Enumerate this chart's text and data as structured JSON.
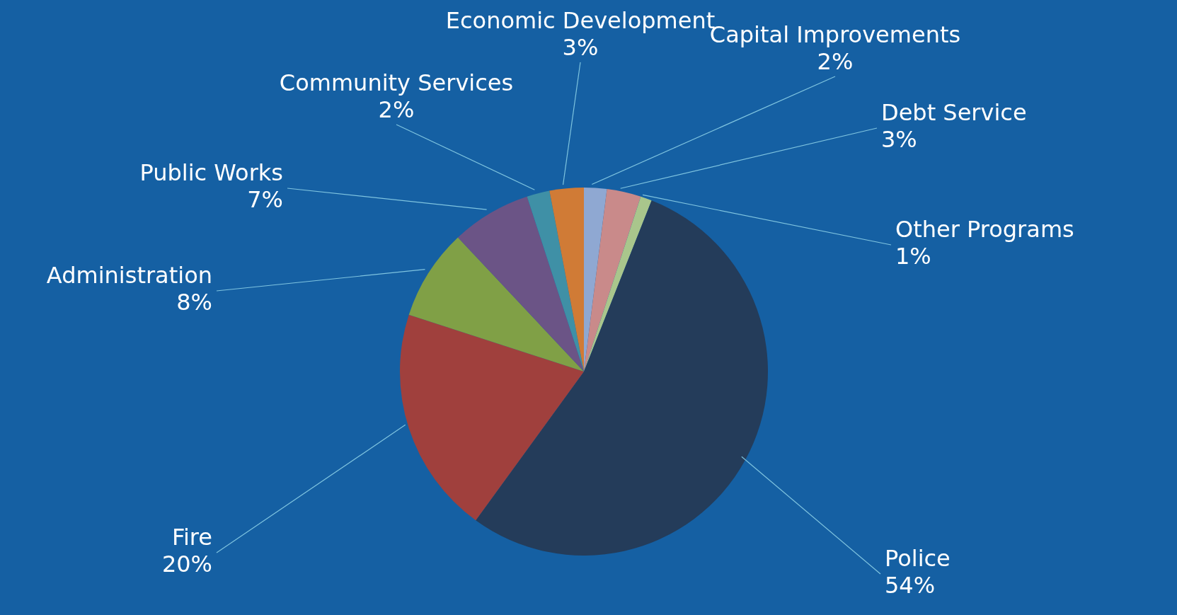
{
  "chart_data": {
    "type": "pie",
    "categories": [
      "Capital Improvements",
      "Debt Service",
      "Other Programs",
      "Police",
      "Fire",
      "Administration",
      "Public Works",
      "Community Services",
      "Economic Development"
    ],
    "values": [
      2,
      3,
      1,
      54,
      20,
      8,
      7,
      2,
      3
    ],
    "value_labels": [
      "2%",
      "3%",
      "1%",
      "54%",
      "20%",
      "8%",
      "7%",
      "2%",
      "3%"
    ],
    "colors": [
      "#8fa8d2",
      "#c98a8a",
      "#a9c68c",
      "#243c5a",
      "#a0403d",
      "#80a046",
      "#6b5486",
      "#3f90a6",
      "#d07b36"
    ],
    "legend": false
  }
}
